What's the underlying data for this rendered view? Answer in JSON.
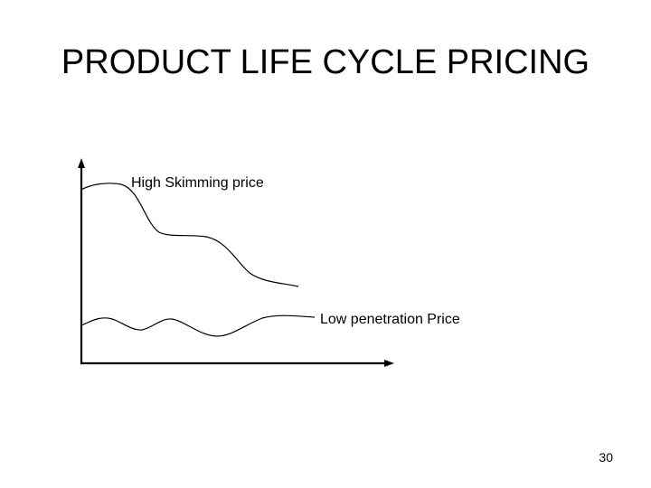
{
  "slide": {
    "title": "PRODUCT LIFE CYCLE PRICING",
    "page_number": "30"
  },
  "diagram": {
    "curves": [
      {
        "label": "High Skimming price",
        "trend": "falling in steps"
      },
      {
        "label": "Low penetration Price",
        "trend": "low and wavy"
      }
    ]
  },
  "colors": {
    "background": "#ffffff",
    "ink": "#000000"
  }
}
